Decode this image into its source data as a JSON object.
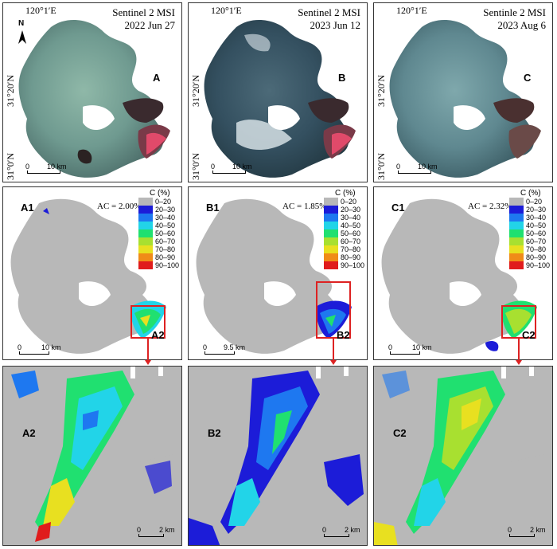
{
  "top_panels": [
    {
      "id": "A",
      "sensor": "Sentinel 2 MSI",
      "date": "2022 Jun 27",
      "lon": "120°1′E",
      "lat1": "31°20′N",
      "lat2": "31°0′N",
      "scale": "10 km",
      "zero": "0"
    },
    {
      "id": "B",
      "sensor": "Sentinel 2 MSI",
      "date": "2023 Jun 12",
      "lon": "120°1′E",
      "lat1": "31°20′N",
      "lat2": "31°0′N",
      "scale": "10 km",
      "zero": "0"
    },
    {
      "id": "C",
      "sensor": "Sentinle 2 MSI",
      "date": "2023 Aug 6",
      "lon": "120°1′E",
      "lat1": "31°20′N",
      "lat2": "31°0′N",
      "scale": "10 km",
      "zero": "0"
    }
  ],
  "middle_panels": [
    {
      "id": "A1",
      "ac": "AC = 2.00%",
      "inset": "A2",
      "scale": "10 km",
      "zero": "0"
    },
    {
      "id": "B1",
      "ac": "AC = 1.85%",
      "inset": "B2",
      "scale": "9.5 km",
      "zero": "0"
    },
    {
      "id": "C1",
      "ac": "AC = 2.32%",
      "inset": "C2",
      "scale": "10 km",
      "zero": "0"
    }
  ],
  "bottom_panels": [
    {
      "id": "A2",
      "scale": "2 km",
      "zero": "0"
    },
    {
      "id": "B2",
      "scale": "2 km",
      "zero": "0"
    },
    {
      "id": "C2",
      "scale": "2 km",
      "zero": "0"
    }
  ],
  "north_label": "N",
  "legend": {
    "title": "C (%)",
    "items": [
      {
        "label": "0–20",
        "color": "#b8b8b8"
      },
      {
        "label": "20–30",
        "color": "#1c1cd8"
      },
      {
        "label": "30–40",
        "color": "#1e78f0"
      },
      {
        "label": "40–50",
        "color": "#22d4e8"
      },
      {
        "label": "50–60",
        "color": "#20e070"
      },
      {
        "label": "60–70",
        "color": "#a8e030"
      },
      {
        "label": "70–80",
        "color": "#e8e020"
      },
      {
        "label": "80–90",
        "color": "#f08c18"
      },
      {
        "label": "90–100",
        "color": "#e01c1c"
      }
    ]
  }
}
